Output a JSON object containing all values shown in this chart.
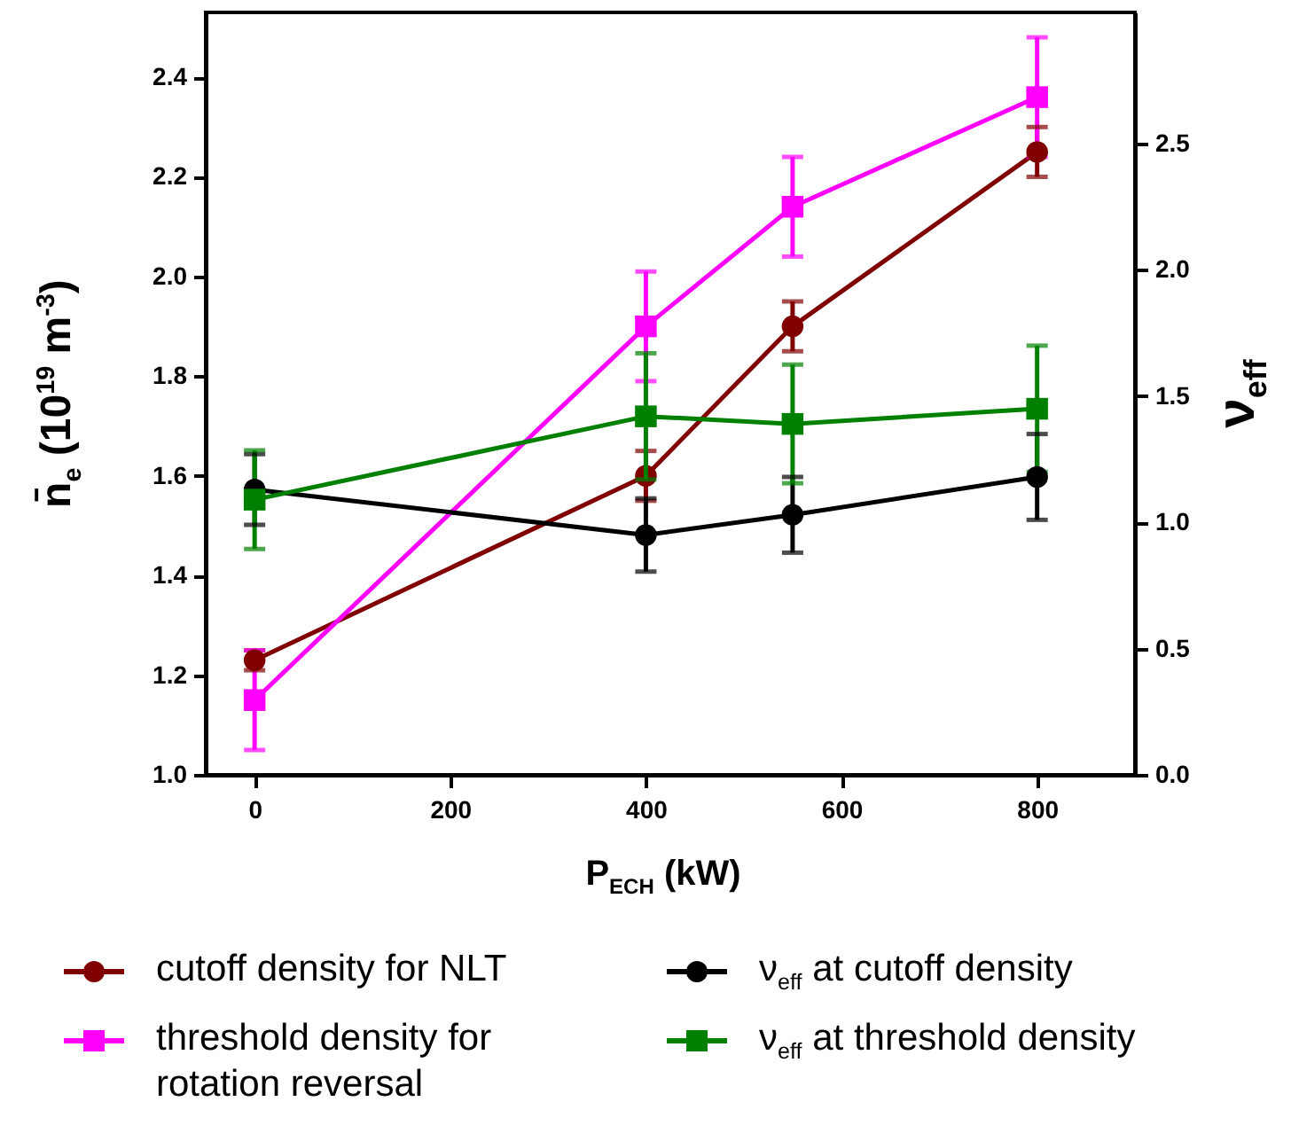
{
  "chart_data": {
    "type": "line",
    "xlabel": "P$_{ECH}$ (kW)",
    "ylabel": "n̄$_{e}$ (10$^{19}$ m$^{-3}$)",
    "y2label": "ν$_{eff}$",
    "x": [
      0,
      400,
      550,
      800
    ],
    "series": [
      {
        "name": "cutoff density for NLT",
        "color": "#800000",
        "marker": "circle",
        "values": [
          1.23,
          1.6,
          1.9,
          2.25
        ],
        "errors": [
          0.02,
          0.05,
          0.05,
          0.05
        ]
      },
      {
        "name": "threshold density for rotation reversal",
        "color": "#ff00ff",
        "marker": "square",
        "values": [
          1.15,
          1.9,
          2.14,
          2.36
        ],
        "errors": [
          0.1,
          0.11,
          0.1,
          0.12
        ]
      },
      {
        "name": "ν$_{eff}$ at cutoff density",
        "color": "#000000",
        "marker": "circle",
        "axis": "y2",
        "values": [
          1.13,
          0.95,
          1.03,
          1.18
        ],
        "errors": [
          0.14,
          0.145,
          0.15,
          0.17
        ]
      },
      {
        "name": "ν$_{eff}$ at threshold density",
        "color": "#008000",
        "marker": "square",
        "axis": "y2",
        "values": [
          1.09,
          1.42,
          1.39,
          1.45
        ],
        "errors": [
          0.195,
          0.25,
          0.235,
          0.25
        ]
      }
    ],
    "xlim": [
      -50,
      900
    ],
    "xticks": [
      0,
      200,
      400,
      600,
      800
    ],
    "ylim": [
      1.0,
      2.53
    ],
    "yticks": [
      {
        "value": 1.0,
        "label": "1.0"
      },
      1.2,
      1.4,
      1.6,
      1.8,
      {
        "value": 2.0,
        "label": "2.0"
      },
      2.2,
      2.4
    ],
    "y2lim": [
      0,
      3.02
    ],
    "y2ticks": [
      {
        "value": 0,
        "label": "0.0"
      },
      0.5,
      {
        "value": 1,
        "label": "1.0"
      },
      1.5,
      {
        "value": 2,
        "label": "2.0"
      },
      2.5
    ],
    "legend": "bottom",
    "line_style": "solid",
    "grid": false
  }
}
